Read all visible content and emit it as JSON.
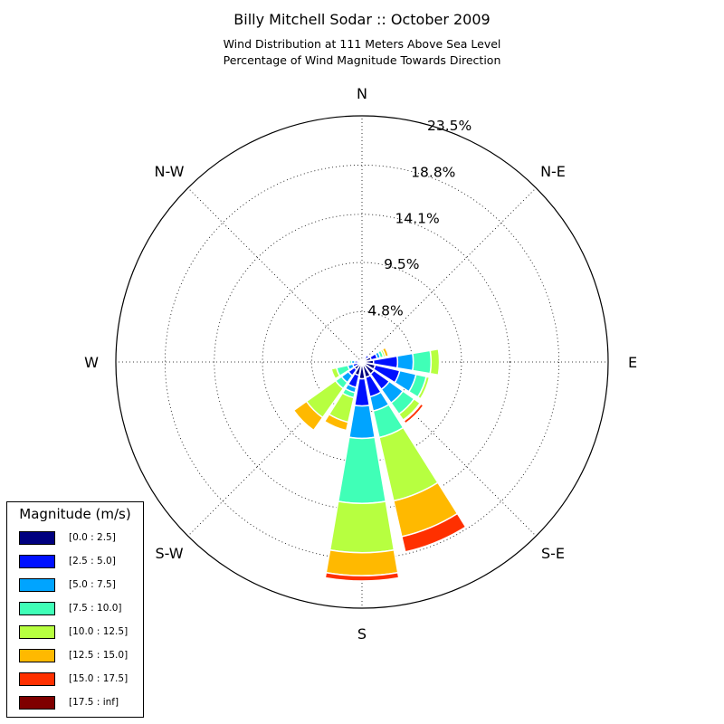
{
  "title": "Billy Mitchell Sodar :: October 2009",
  "subtitle_line1": "Wind Distribution at 111 Meters Above Sea Level",
  "subtitle_line2": "Percentage of Wind Magnitude Towards Direction",
  "legend": {
    "title": "Magnitude (m/s)",
    "items": [
      {
        "label": "[0.0 : 2.5]",
        "color": "#00007f"
      },
      {
        "label": "[2.5 : 5.0]",
        "color": "#0010ff"
      },
      {
        "label": "[5.0 : 7.5]",
        "color": "#00a4ff"
      },
      {
        "label": "[7.5 : 10.0]",
        "color": "#40ffb7"
      },
      {
        "label": "[10.0 : 12.5]",
        "color": "#b7ff40"
      },
      {
        "label": "[12.5 : 15.0]",
        "color": "#ffb900"
      },
      {
        "label": "[15.0 : 17.5]",
        "color": "#ff3000"
      },
      {
        "label": "[17.5 : inf]",
        "color": "#7f0000"
      }
    ]
  },
  "chart_data": {
    "type": "windrose",
    "title": "Billy Mitchell Sodar :: October 2009",
    "radial_unit": "%",
    "radial_max": 23.5,
    "radial_ticks": [
      4.8,
      9.5,
      14.1,
      18.8,
      23.5
    ],
    "radial_tick_labels": [
      "4.8%",
      "9.5%",
      "14.1%",
      "18.8%",
      "23.5%"
    ],
    "direction_labels": [
      {
        "label": "N",
        "angle": 0
      },
      {
        "label": "N-E",
        "angle": 45
      },
      {
        "label": "E",
        "angle": 90
      },
      {
        "label": "S-E",
        "angle": 135
      },
      {
        "label": "S",
        "angle": 180
      },
      {
        "label": "S-W",
        "angle": 225
      },
      {
        "label": "W",
        "angle": 270
      },
      {
        "label": "N-W",
        "angle": 315
      }
    ],
    "sector_width_deg": 22.5,
    "bins": [
      "[0.0 : 2.5]",
      "[2.5 : 5.0]",
      "[5.0 : 7.5]",
      "[7.5 : 10.0]",
      "[10.0 : 12.5]",
      "[12.5 : 15.0]",
      "[15.0 : 17.5]",
      "[17.5 : inf]"
    ],
    "sectors": [
      {
        "dir": 0,
        "values": [
          0.1,
          0.1,
          0.0,
          0.0,
          0.0,
          0.0,
          0.0,
          0.0
        ]
      },
      {
        "dir": 22.5,
        "values": [
          0.3,
          0.2,
          0.0,
          0.0,
          0.0,
          0.0,
          0.0,
          0.0
        ]
      },
      {
        "dir": 45,
        "values": [
          0.5,
          0.3,
          0.0,
          0.0,
          0.0,
          0.0,
          0.0,
          0.0
        ]
      },
      {
        "dir": 67.5,
        "values": [
          0.9,
          0.6,
          0.3,
          0.3,
          0.2,
          0.3,
          0.0,
          0.0
        ]
      },
      {
        "dir": 90,
        "values": [
          1.1,
          2.3,
          1.5,
          1.7,
          0.8,
          0.0,
          0.0,
          0.0
        ]
      },
      {
        "dir": 112.5,
        "values": [
          1.3,
          2.4,
          1.6,
          1.0,
          0.3,
          0.0,
          0.0,
          0.0
        ]
      },
      {
        "dir": 135,
        "values": [
          1.4,
          1.8,
          1.6,
          1.3,
          0.7,
          0.1,
          0.3,
          0.1
        ]
      },
      {
        "dir": 157.5,
        "values": [
          1.5,
          1.9,
          1.4,
          2.6,
          6.2,
          3.5,
          1.5,
          0.0
        ]
      },
      {
        "dir": 180,
        "values": [
          1.6,
          2.6,
          3.1,
          6.2,
          4.7,
          2.2,
          0.5,
          0.0
        ]
      },
      {
        "dir": 202.5,
        "values": [
          1.3,
          1.2,
          0.5,
          0.5,
          2.4,
          0.8,
          0.0,
          0.0
        ]
      },
      {
        "dir": 225,
        "values": [
          0.9,
          0.7,
          0.8,
          0.7,
          3.4,
          1.5,
          0.1,
          0.0
        ]
      },
      {
        "dir": 247.5,
        "values": [
          0.4,
          0.5,
          0.5,
          1.1,
          0.5,
          0.0,
          0.0,
          0.0
        ]
      },
      {
        "dir": 270,
        "values": [
          0.3,
          0.4,
          0.3,
          0.2,
          0.0,
          0.0,
          0.0,
          0.0
        ]
      },
      {
        "dir": 292.5,
        "values": [
          0.2,
          0.1,
          0.0,
          0.0,
          0.0,
          0.0,
          0.0,
          0.0
        ]
      },
      {
        "dir": 315,
        "values": [
          0.1,
          0.0,
          0.0,
          0.0,
          0.0,
          0.0,
          0.0,
          0.0
        ]
      },
      {
        "dir": 337.5,
        "values": [
          0.1,
          0.0,
          0.0,
          0.0,
          0.0,
          0.0,
          0.0,
          0.0
        ]
      }
    ],
    "grid": true,
    "legend_position": "lower-left"
  }
}
